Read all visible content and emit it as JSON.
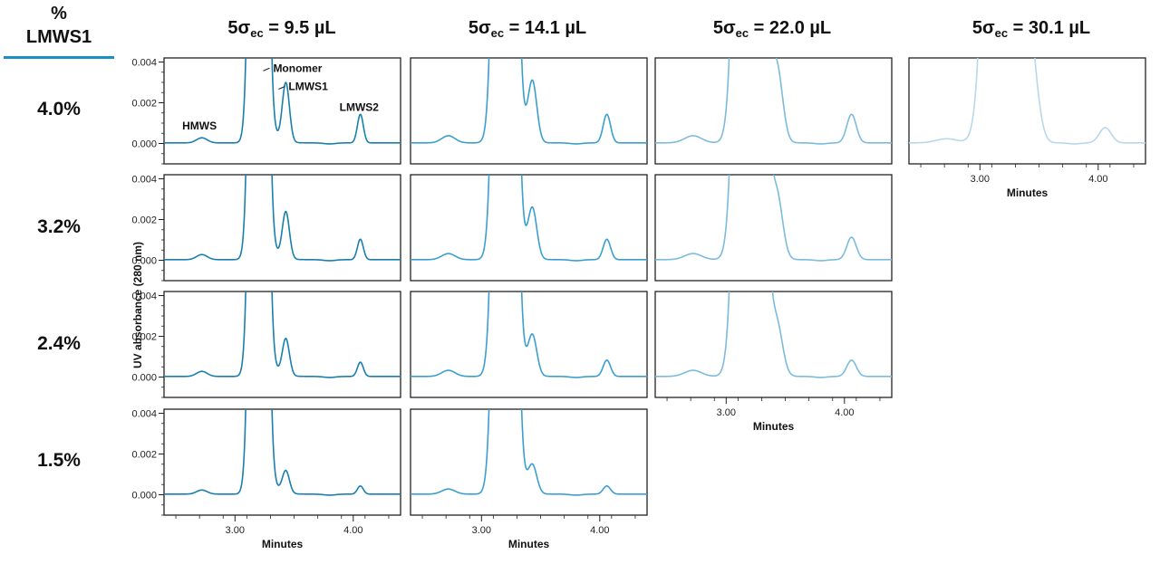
{
  "header": {
    "pct_symbol": "%",
    "metric": "LMWS1"
  },
  "y_axis_label": "UV absorbance (280 nm)",
  "x_axis_label": "Minutes",
  "column_titles": [
    {
      "prefix": "5σ",
      "sub": "ec",
      "suffix": " = 9.5 µL"
    },
    {
      "prefix": "5σ",
      "sub": "ec",
      "suffix": " = 14.1 µL"
    },
    {
      "prefix": "5σ",
      "sub": "ec",
      "suffix": " = 22.0 µL"
    },
    {
      "prefix": "5σ",
      "sub": "ec",
      "suffix": " = 30.1 µL"
    }
  ],
  "row_labels": [
    "4.0%",
    "3.2%",
    "2.4%",
    "1.5%"
  ],
  "colors": {
    "col0": "#1a7fae",
    "col1": "#3a9fcf",
    "col2": "#7cbbdc",
    "col3": "#b7d8ea",
    "header_rule": "#1a8fc4"
  },
  "chart_data": {
    "type": "line",
    "xlim": [
      2.4,
      4.4
    ],
    "ylim": [
      -0.001,
      0.0042
    ],
    "y_ticks": [
      0.0,
      0.002,
      0.004
    ],
    "y_tick_labels": [
      "0.000",
      "0.002",
      "0.004"
    ],
    "x_ticks": [
      3.0,
      4.0
    ],
    "x_tick_labels": [
      "3.00",
      "4.00"
    ],
    "y_tick_labels_column": 0,
    "annotations": [
      {
        "text": "Monomer",
        "x": 3.3,
        "y": 0.0037
      },
      {
        "text": "LMWS1",
        "x": 3.43,
        "y": 0.0028
      },
      {
        "text": "LMWS2",
        "x": 4.05,
        "y": 0.0016
      },
      {
        "text": "HMWS",
        "x": 2.7,
        "y": 0.0007
      }
    ],
    "panels": [
      {
        "row": 0,
        "col": 0,
        "hmws": 0.00025,
        "lmws1": 0.0029,
        "lmws2": 0.0014,
        "sigma_scale": 1.0
      },
      {
        "row": 0,
        "col": 1,
        "hmws": 0.00035,
        "lmws1": 0.003,
        "lmws2": 0.0014,
        "sigma_scale": 1.25
      },
      {
        "row": 0,
        "col": 2,
        "hmws": 0.00035,
        "lmws1": 0.0035,
        "lmws2": 0.0014,
        "sigma_scale": 1.6
      },
      {
        "row": 0,
        "col": 3,
        "hmws": 0.0002,
        "lmws1": 0.0036,
        "lmws2": 0.00075,
        "sigma_scale": 2.0
      },
      {
        "row": 1,
        "col": 0,
        "hmws": 0.00025,
        "lmws1": 0.0023,
        "lmws2": 0.001,
        "sigma_scale": 1.0
      },
      {
        "row": 1,
        "col": 1,
        "hmws": 0.0003,
        "lmws1": 0.0025,
        "lmws2": 0.001,
        "sigma_scale": 1.25
      },
      {
        "row": 1,
        "col": 2,
        "hmws": 0.0003,
        "lmws1": 0.003,
        "lmws2": 0.0011,
        "sigma_scale": 1.6
      },
      {
        "row": 2,
        "col": 0,
        "hmws": 0.00025,
        "lmws1": 0.0018,
        "lmws2": 0.0007,
        "sigma_scale": 1.0
      },
      {
        "row": 2,
        "col": 1,
        "hmws": 0.0003,
        "lmws1": 0.002,
        "lmws2": 0.0008,
        "sigma_scale": 1.25
      },
      {
        "row": 2,
        "col": 2,
        "hmws": 0.0003,
        "lmws1": 0.0024,
        "lmws2": 0.0008,
        "sigma_scale": 1.6
      },
      {
        "row": 3,
        "col": 0,
        "hmws": 0.0002,
        "lmws1": 0.0011,
        "lmws2": 0.0004,
        "sigma_scale": 1.0
      },
      {
        "row": 3,
        "col": 1,
        "hmws": 0.00025,
        "lmws1": 0.0014,
        "lmws2": 0.0004,
        "sigma_scale": 1.25
      }
    ],
    "x_axis_columns": [
      {
        "col": 0,
        "row": 3
      },
      {
        "col": 1,
        "row": 3
      },
      {
        "col": 2,
        "row": 2
      },
      {
        "col": 3,
        "row": 0
      }
    ]
  }
}
